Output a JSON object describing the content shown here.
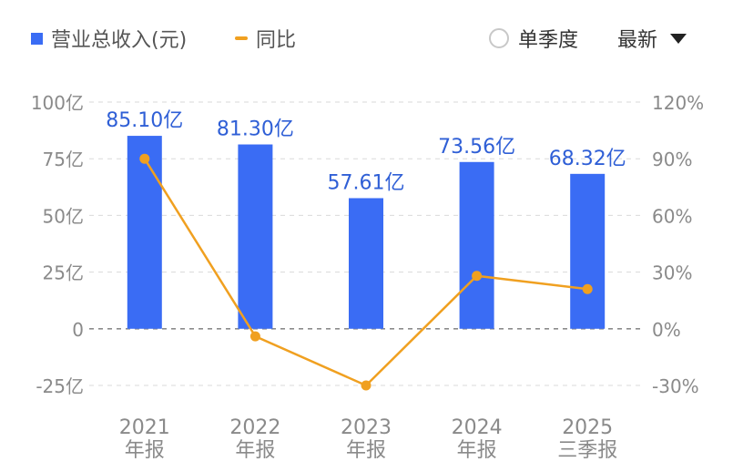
{
  "legend": {
    "bar_label": "营业总收入(元)",
    "line_label": "同比"
  },
  "controls": {
    "quarter_label": "单季度",
    "latest_label": "最新"
  },
  "colors": {
    "bar": "#3a6cf4",
    "line": "#f0a020",
    "bar_label": "#2f5fd6",
    "grid": "#d9d9d9",
    "axis_text": "#8a8a8a"
  },
  "chart_data": {
    "type": "bar",
    "categories": [
      "2021|年报",
      "2022|年报",
      "2023|年报",
      "2024|年报",
      "2025|三季报"
    ],
    "series": [
      {
        "name": "营业总收入(元)",
        "type": "bar",
        "axis": "left",
        "unit": "亿",
        "values": [
          85.1,
          81.3,
          57.61,
          73.56,
          68.32
        ],
        "labels": [
          "85.10亿",
          "81.30亿",
          "57.61亿",
          "73.56亿",
          "68.32亿"
        ]
      },
      {
        "name": "同比",
        "type": "line",
        "axis": "right",
        "unit": "%",
        "values": [
          90,
          -4,
          -30,
          28,
          21
        ]
      }
    ],
    "y_left": {
      "min": -25,
      "max": 100,
      "ticks": [
        100,
        75,
        50,
        25,
        0,
        -25
      ],
      "tick_labels": [
        "100亿",
        "75亿",
        "50亿",
        "25亿",
        "0",
        "-25亿"
      ]
    },
    "y_right": {
      "min": -30,
      "max": 120,
      "ticks": [
        120,
        90,
        60,
        30,
        0,
        -30
      ],
      "tick_labels": [
        "120%",
        "90%",
        "60%",
        "30%",
        "0%",
        "-30%"
      ]
    },
    "grid": true,
    "legend": "top-left"
  }
}
